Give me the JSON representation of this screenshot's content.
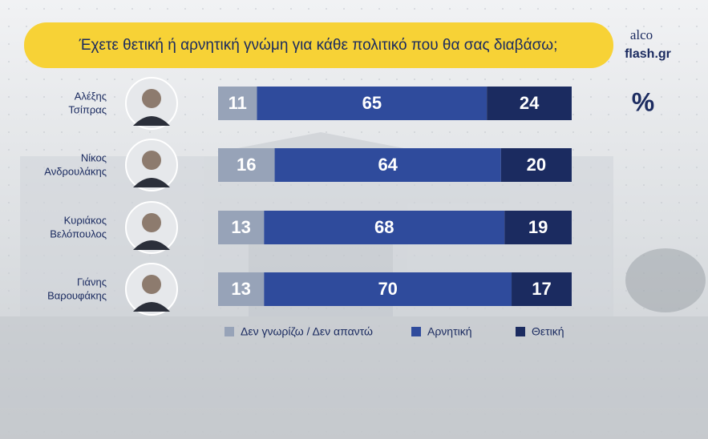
{
  "chart_data": {
    "type": "stacked-bar-horizontal",
    "title": "Έχετε θετική ή αρνητική γνώμη για κάθε πολιτικό που θα σας διαβάσω;",
    "brand": [
      "alco",
      "flash.gr"
    ],
    "unit_label": "%",
    "categories": [
      [
        "Αλέξης",
        "Τσίπρας"
      ],
      [
        "Νίκος",
        "Ανδρουλάκης"
      ],
      [
        "Κυριάκος",
        "Βελόπουλος"
      ],
      [
        "Γιάνης",
        "Βαρουφάκης"
      ]
    ],
    "series": [
      {
        "name": "Δεν γνωρίζω / Δεν απαντώ",
        "color": "#97a3b8",
        "values": [
          11,
          16,
          13,
          13
        ]
      },
      {
        "name": "Αρνητική",
        "color": "#2f4b9c",
        "values": [
          65,
          64,
          68,
          70
        ]
      },
      {
        "name": "Θετική",
        "color": "#1b2b60",
        "values": [
          24,
          20,
          19,
          17
        ]
      }
    ],
    "xlim": [
      0,
      100
    ]
  }
}
